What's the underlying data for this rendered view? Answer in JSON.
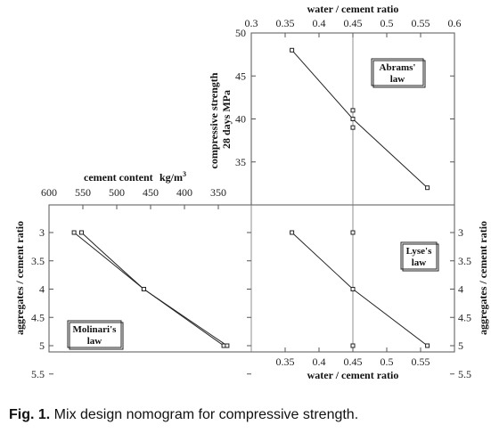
{
  "chart_data": [
    {
      "type": "line",
      "panel": "top-right",
      "xlabel": "water / cement ratio",
      "ylabel": "compressive strength 28 days MPa",
      "xlim": [
        0.3,
        0.6
      ],
      "ylim": [
        30,
        50
      ],
      "x_ticks": [
        "0.3",
        "0.35",
        "0.4",
        "0.45",
        "0.5",
        "0.55",
        "0.6"
      ],
      "y_ticks": [
        "35",
        "40",
        "45",
        "50"
      ],
      "legend": [
        "Abrams'",
        "law"
      ],
      "points": [
        {
          "x": 0.36,
          "y": 48
        },
        {
          "x": 0.45,
          "y": 41
        },
        {
          "x": 0.45,
          "y": 40
        },
        {
          "x": 0.45,
          "y": 39
        },
        {
          "x": 0.56,
          "y": 32
        }
      ],
      "fit_line": [
        {
          "x": 0.36,
          "y": 48
        },
        {
          "x": 0.45,
          "y": 40
        },
        {
          "x": 0.56,
          "y": 32
        }
      ]
    },
    {
      "type": "line",
      "panel": "bottom-left",
      "xlabel": "cement content",
      "xlabel_units": "kg/m",
      "xlabel_units_sup": "3",
      "ylabel": "aggregates / cement ratio",
      "xlim": [
        600,
        350
      ],
      "ylim": [
        5.5,
        2.5
      ],
      "x_ticks": [
        "600",
        "550",
        "500",
        "450",
        "400",
        "350"
      ],
      "y_ticks": [
        "3",
        "3.5",
        "4",
        "4.5",
        "5",
        "5.5"
      ],
      "legend": [
        "Molinari's",
        "law"
      ],
      "series": [
        {
          "points": [
            {
              "x": 552,
              "y": 3.0
            },
            {
              "x": 460,
              "y": 4.0
            },
            {
              "x": 342,
              "y": 5.0
            }
          ]
        },
        {
          "points": [
            {
              "x": 563,
              "y": 3.0
            },
            {
              "x": 460,
              "y": 4.0
            },
            {
              "x": 337,
              "y": 5.0
            }
          ]
        }
      ]
    },
    {
      "type": "line",
      "panel": "bottom-right",
      "xlabel": "water / cement ratio",
      "ylabel": "aggregates / cement ratio",
      "xlim": [
        0.25,
        0.6
      ],
      "ylim": [
        5.5,
        2.5
      ],
      "x_ticks": [
        "0.35",
        "0.4",
        "0.45",
        "0.5",
        "0.55"
      ],
      "y_ticks": [
        "3",
        "3.5",
        "4",
        "4.5",
        "5",
        "5.5"
      ],
      "legend": [
        "Lyse's",
        "law"
      ],
      "points": [
        {
          "x": 0.36,
          "y": 3.0
        },
        {
          "x": 0.45,
          "y": 3.0
        },
        {
          "x": 0.45,
          "y": 4.0
        },
        {
          "x": 0.45,
          "y": 5.0
        },
        {
          "x": 0.56,
          "y": 5.0
        }
      ],
      "fit_line": [
        {
          "x": 0.36,
          "y": 3.0
        },
        {
          "x": 0.45,
          "y": 4.0
        },
        {
          "x": 0.56,
          "y": 5.0
        }
      ]
    }
  ],
  "caption": {
    "label": "Fig. 1.",
    "text": " Mix design nomogram for compressive strength."
  }
}
